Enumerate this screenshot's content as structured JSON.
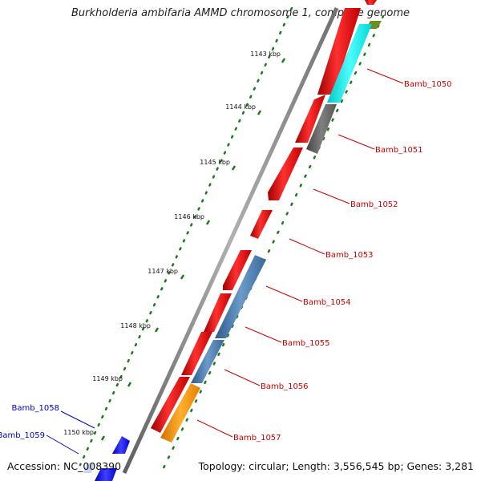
{
  "title": "Burkholderia ambifaria AMMD chromosome 1, complete genome",
  "accession": "Accession: NC_008390",
  "summary": "Topology: circular; Length: 3,556,545 bp; Genes: 3,281",
  "colors": {
    "backbone": "#8a8a8a",
    "gc_ticks": "#1a7a1a",
    "forward_strand_gene": "#ff0000",
    "label_red": "#cc0000",
    "label_blue": "#0000cc",
    "gene_1050": "#00ffff",
    "gene_1051": "#666666",
    "gene_1054_1056": "#4a7ab0",
    "gene_1057": "#ff9900",
    "gene_1058_1059": "#0000ff",
    "top_gene": "#6b8e23"
  },
  "scale_labels": [
    "1143 kbp",
    "1144 kbp",
    "1145 kbp",
    "1146 kbp",
    "1147 kbp",
    "1148 kbp",
    "1149 kbp",
    "1150 kbp"
  ],
  "gene_labels_right": [
    "Bamb_1050",
    "Bamb_1051",
    "Bamb_1052",
    "Bamb_1053",
    "Bamb_1054",
    "Bamb_1055",
    "Bamb_1056",
    "Bamb_1057"
  ],
  "gene_labels_left": [
    "Bamb_1058",
    "Bamb_1059"
  ]
}
